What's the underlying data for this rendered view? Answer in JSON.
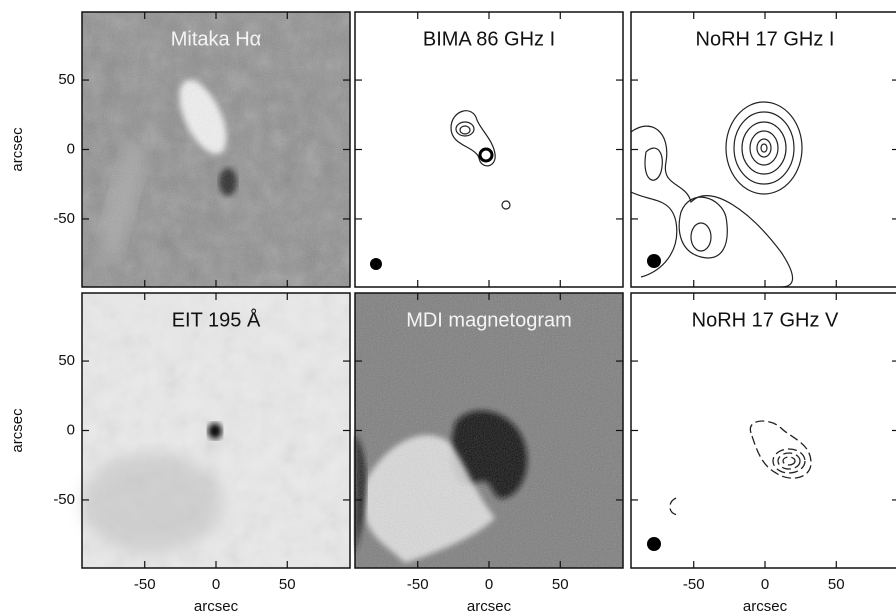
{
  "chart_data": [
    {
      "type": "image",
      "title": "Mitaka Hα",
      "xlim": [
        -94,
        94
      ],
      "ylim": [
        -99,
        99
      ],
      "xticks": [
        -50,
        0,
        50
      ],
      "yticks": [
        -50,
        0,
        50
      ],
      "ylabel": "arcsec"
    },
    {
      "type": "image",
      "title": "BIMA 86 GHz I",
      "xlim": [
        -94,
        94
      ],
      "ylim": [
        -99,
        99
      ],
      "xticks": [
        -50,
        0,
        50
      ],
      "yticks": [
        -50,
        0,
        50
      ]
    },
    {
      "type": "image",
      "title": "NoRH 17 GHz I",
      "xlim": [
        -94,
        94
      ],
      "ylim": [
        -99,
        99
      ],
      "xticks": [
        -50,
        0,
        50
      ],
      "yticks": [
        -50,
        0,
        50
      ]
    },
    {
      "type": "image",
      "title": "EIT 195 Å",
      "xlim": [
        -94,
        94
      ],
      "ylim": [
        -99,
        99
      ],
      "xticks": [
        -50,
        0,
        50
      ],
      "yticks": [
        -50,
        0,
        50
      ],
      "xlabel": "arcsec",
      "ylabel": "arcsec"
    },
    {
      "type": "image",
      "title": "MDI magnetogram",
      "xlim": [
        -94,
        94
      ],
      "ylim": [
        -99,
        99
      ],
      "xticks": [
        -50,
        0,
        50
      ],
      "yticks": [
        -50,
        0,
        50
      ],
      "xlabel": "arcsec"
    },
    {
      "type": "image",
      "title": "NoRH 17 GHz V",
      "xlim": [
        -94,
        94
      ],
      "ylim": [
        -99,
        99
      ],
      "xticks": [
        -50,
        0,
        50
      ],
      "yticks": [
        -50,
        0,
        50
      ],
      "xlabel": "arcsec"
    }
  ]
}
